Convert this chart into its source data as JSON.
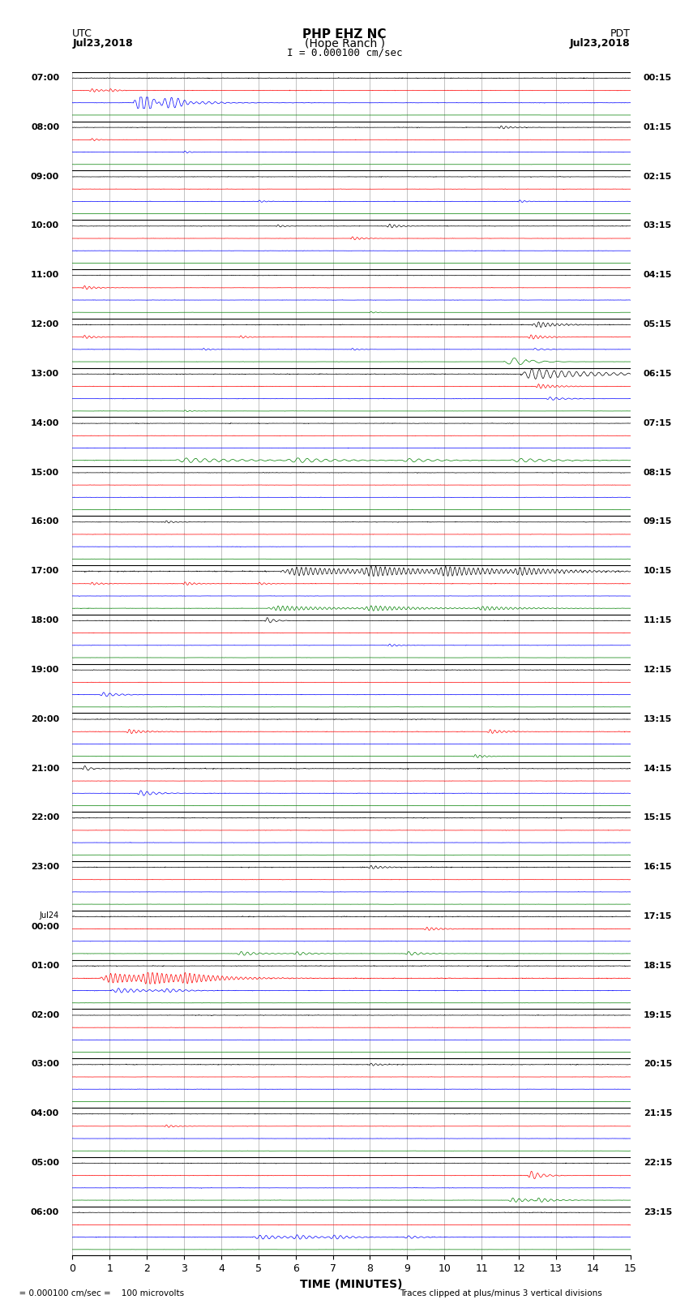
{
  "title_line1": "PHP EHZ NC",
  "title_line2": "(Hope Ranch )",
  "title_line3": "I = 0.000100 cm/sec",
  "left_label_top": "UTC",
  "left_label_date": "Jul23,2018",
  "right_label_top": "PDT",
  "right_label_date": "Jul23,2018",
  "xlabel": "TIME (MINUTES)",
  "footer_left": "= 0.000100 cm/sec =    100 microvolts",
  "footer_right": "Traces clipped at plus/minus 3 vertical divisions",
  "time_min": 0,
  "time_max": 15,
  "n_rows": 24,
  "traces_per_row": 4,
  "trace_colors": [
    "black",
    "red",
    "blue",
    "green"
  ],
  "utc_labels": [
    "07:00",
    "08:00",
    "09:00",
    "10:00",
    "11:00",
    "12:00",
    "13:00",
    "14:00",
    "15:00",
    "16:00",
    "17:00",
    "18:00",
    "19:00",
    "20:00",
    "21:00",
    "22:00",
    "23:00",
    "Jul24\n00:00",
    "01:00",
    "02:00",
    "03:00",
    "04:00",
    "05:00",
    "06:00"
  ],
  "pdt_labels": [
    "00:15",
    "01:15",
    "02:15",
    "03:15",
    "04:15",
    "05:15",
    "06:15",
    "07:15",
    "08:15",
    "09:15",
    "10:15",
    "11:15",
    "12:15",
    "13:15",
    "14:15",
    "15:15",
    "16:15",
    "17:15",
    "18:15",
    "19:15",
    "20:15",
    "21:15",
    "22:15",
    "23:15"
  ],
  "fig_width": 8.5,
  "fig_height": 16.13,
  "bg_color": "white",
  "grid_color": "#aaaaaa",
  "noise_seed": 12345
}
